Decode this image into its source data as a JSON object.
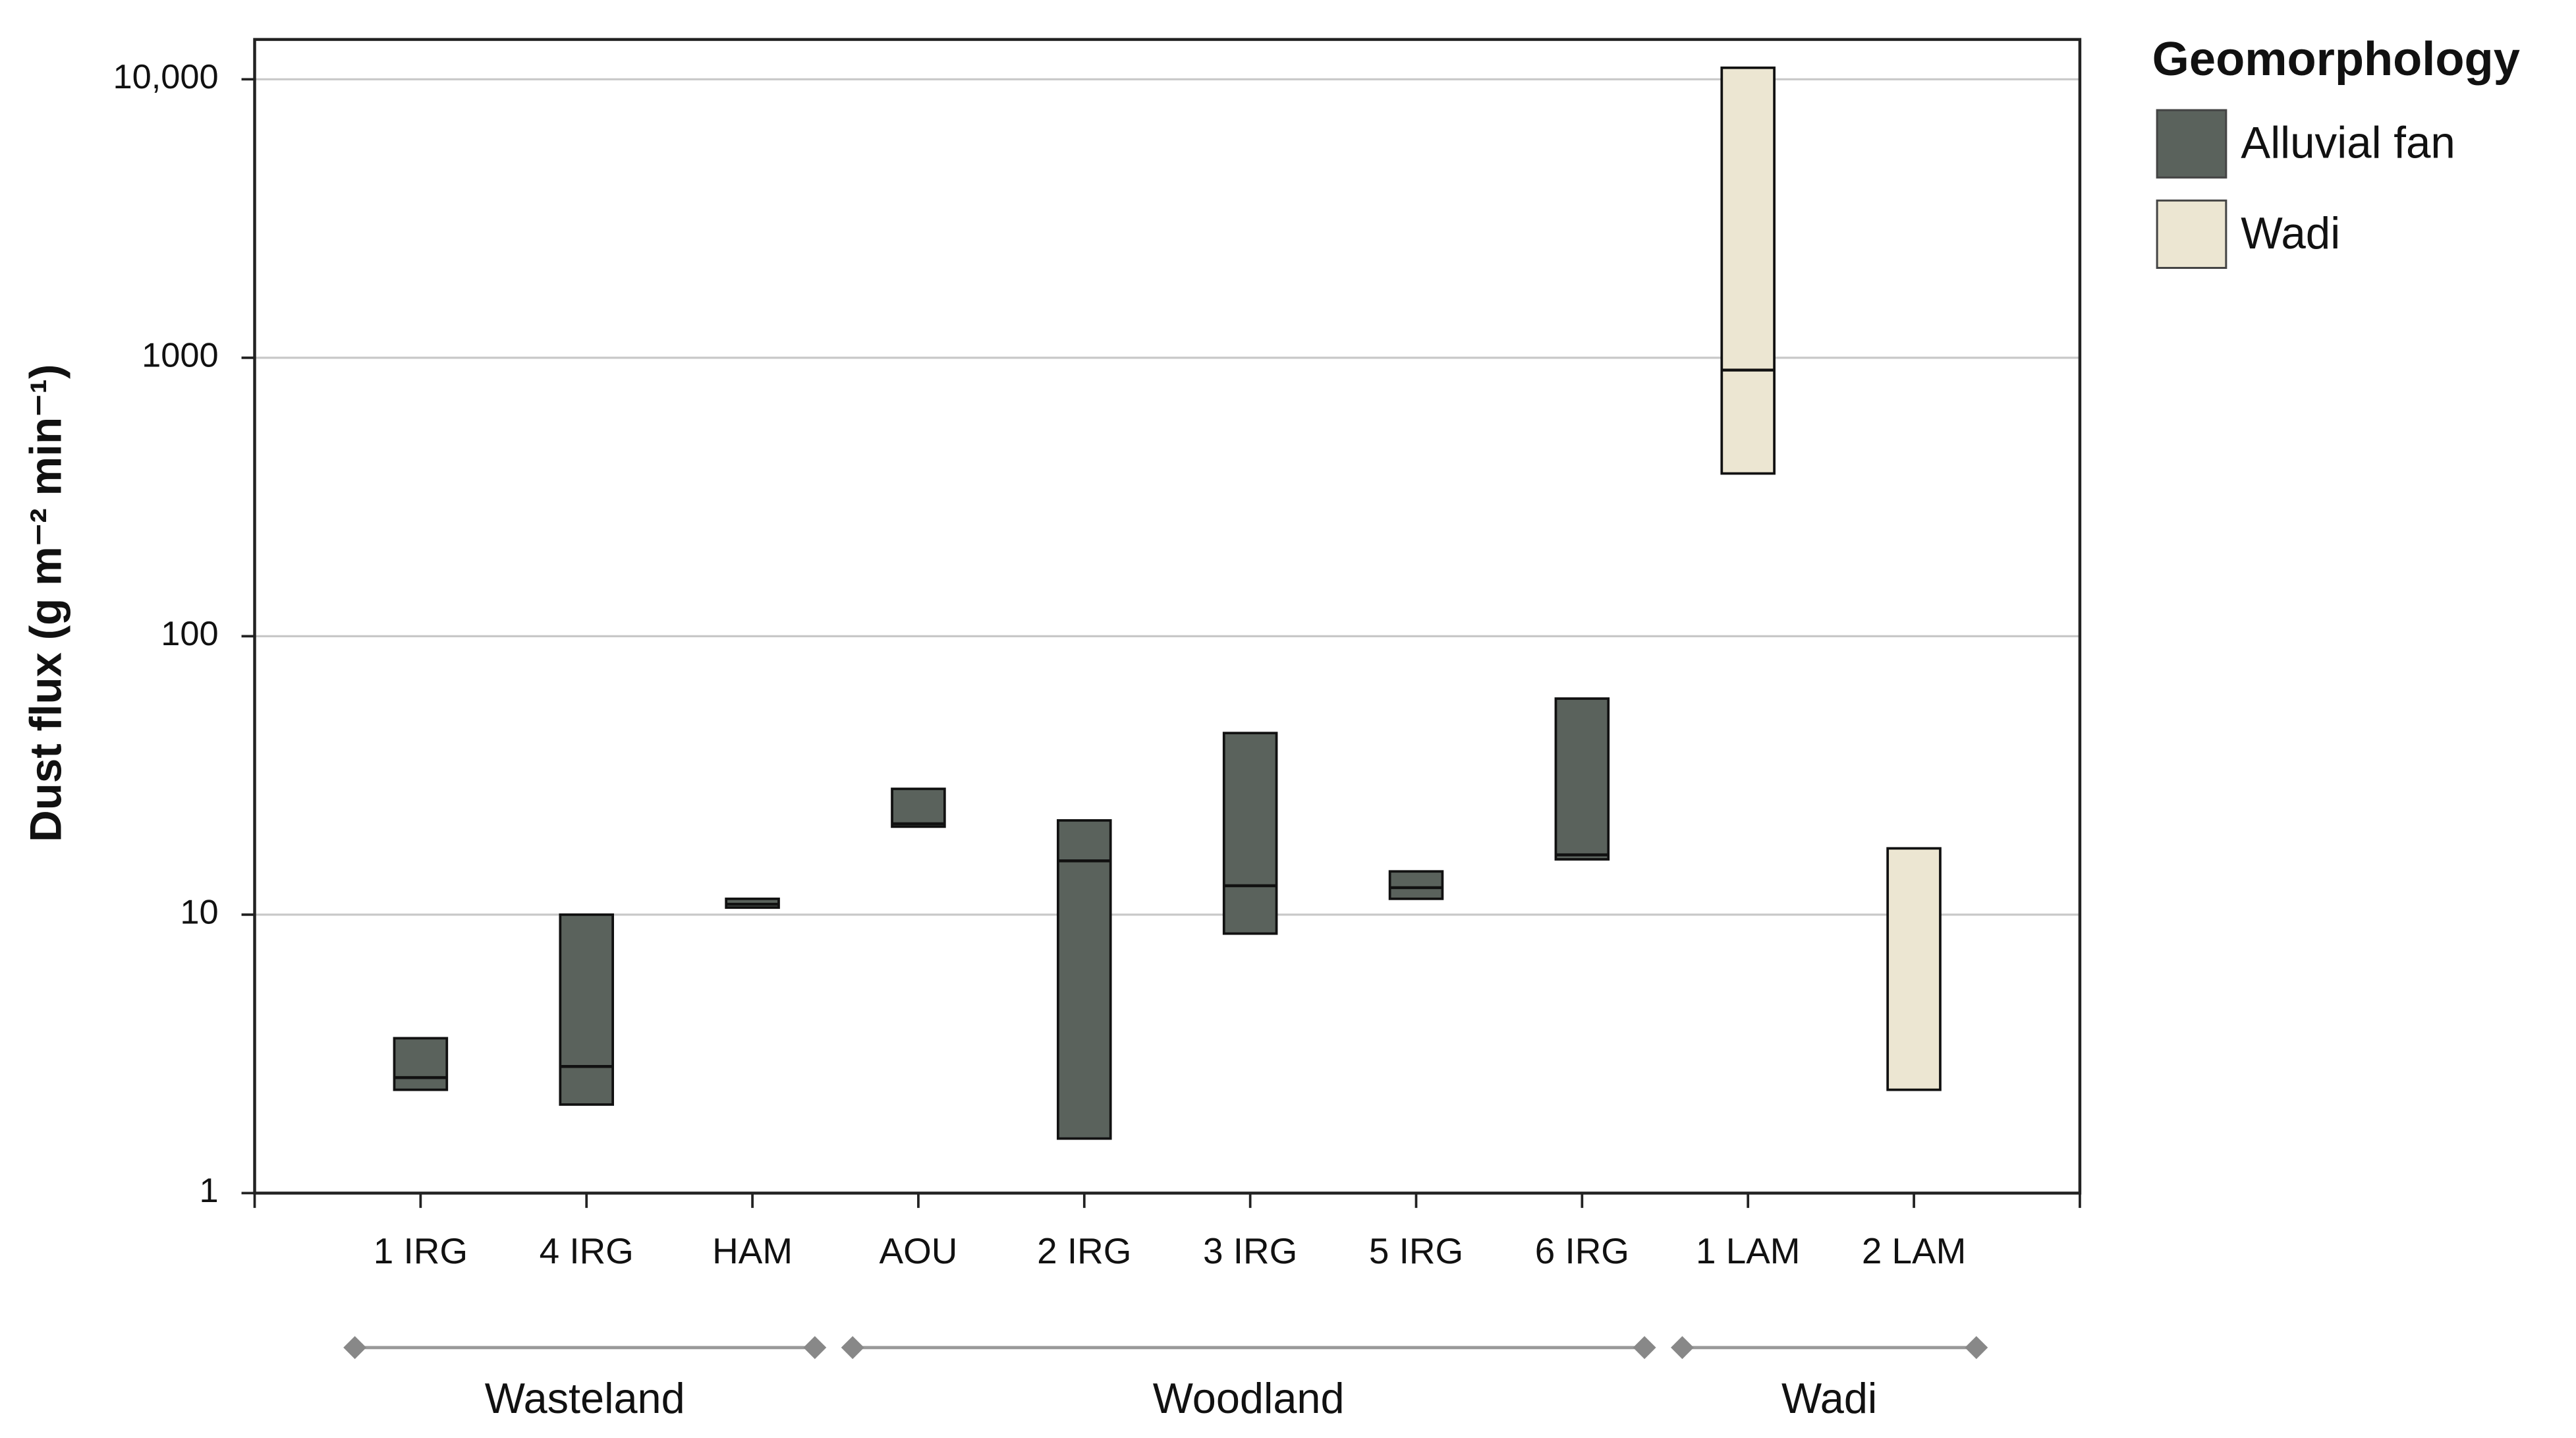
{
  "chart_data": {
    "type": "floating-bar",
    "y_label": "Dust flux (g m⁻² min⁻¹)",
    "legend_title": "Geomorphology",
    "yscale": "log",
    "ylim": [
      1,
      13900
    ],
    "yticks": [
      1,
      10,
      100,
      1000,
      {
        "value": 10000,
        "label": "10,000"
      }
    ],
    "grid": true,
    "categories": [
      "1 IRG",
      "4 IRG",
      "HAM",
      "AOU",
      "2 IRG",
      "3 IRG",
      "5 IRG",
      "6 IRG",
      "1 LAM",
      "2 LAM"
    ],
    "groups": [
      {
        "name": "Wasteland",
        "categories": [
          "1 IRG",
          "4 IRG",
          "HAM"
        ]
      },
      {
        "name": "Woodland",
        "categories": [
          "AOU",
          "2 IRG",
          "3 IRG",
          "5 IRG",
          "6 IRG"
        ]
      },
      {
        "name": "Wadi",
        "categories": [
          "1 LAM",
          "2 LAM"
        ]
      }
    ],
    "series": [
      {
        "name": "Alluvial fan",
        "color": "#5a625c",
        "low": [
          2.35,
          2.08,
          10.6,
          20.7,
          1.57,
          8.55,
          11.4,
          15.8,
          null,
          null
        ],
        "median": [
          2.6,
          2.85,
          10.9,
          21.2,
          15.6,
          12.7,
          12.5,
          16.4,
          null,
          null
        ],
        "high": [
          3.6,
          10,
          11.4,
          28.3,
          21.8,
          44.9,
          14.3,
          59.7,
          null,
          null
        ]
      },
      {
        "name": "Wadi",
        "color": "#ece6d2",
        "low": [
          null,
          null,
          null,
          null,
          null,
          null,
          null,
          null,
          384,
          2.35
        ],
        "median": [
          null,
          null,
          null,
          null,
          null,
          null,
          null,
          null,
          903,
          null
        ],
        "high": [
          null,
          null,
          null,
          null,
          null,
          null,
          null,
          null,
          11000,
          17.3
        ]
      }
    ]
  }
}
